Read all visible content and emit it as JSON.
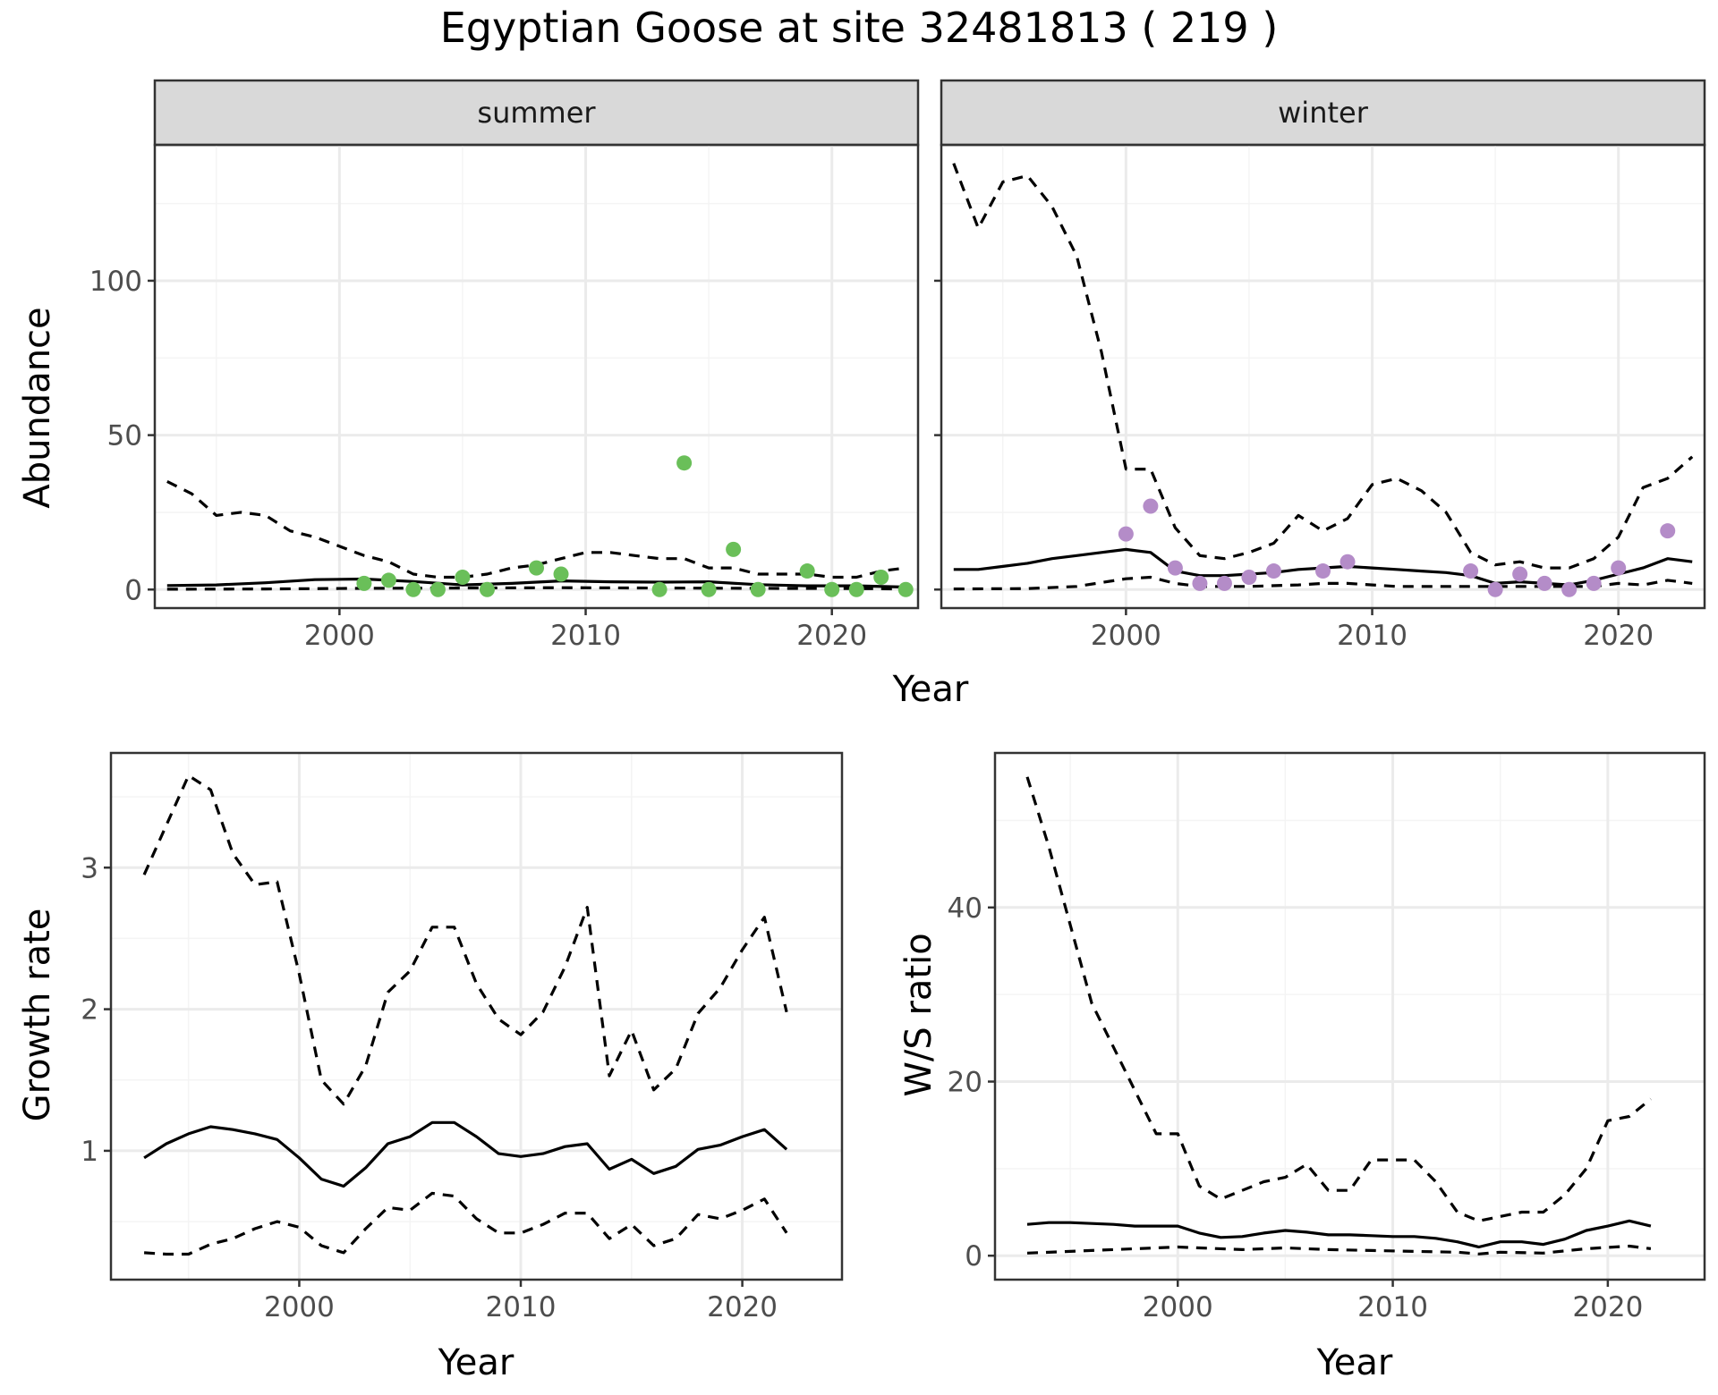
{
  "title": "Egyptian Goose at site 32481813 ( 219 )",
  "colors": {
    "summer_points": "#6abf59",
    "winter_points": "#b48cc8",
    "line": "#000000",
    "strip_bg": "#d9d9d9",
    "grid_major": "#ebebeb",
    "grid_minor": "#f4f4f4"
  },
  "chart_data": [
    {
      "type": "line",
      "panel": "summer",
      "strip_label": "summer",
      "xlabel": "Year",
      "ylabel": "Abundance",
      "xlim": [
        1992.5,
        2023.5
      ],
      "ylim": [
        -6,
        144
      ],
      "xticks": [
        2000,
        2010,
        2020
      ],
      "yticks": [
        0,
        50,
        100
      ],
      "grid": true,
      "series": [
        {
          "style": "solid",
          "x": [
            1993,
            1995,
            1997,
            1999,
            2001,
            2003,
            2005,
            2007,
            2009,
            2011,
            2013,
            2015,
            2017,
            2019,
            2021,
            2023
          ],
          "y": [
            1.3,
            1.5,
            2.2,
            3.2,
            3.4,
            2.6,
            1.5,
            2.0,
            2.8,
            2.5,
            2.4,
            2.5,
            1.6,
            1.2,
            1.2,
            0.8
          ]
        },
        {
          "style": "dashed",
          "x": [
            1993,
            1994,
            1995,
            1996,
            1997,
            1998,
            1999,
            2000,
            2001,
            2002,
            2003,
            2004,
            2005,
            2006,
            2007,
            2008,
            2009,
            2010,
            2011,
            2012,
            2013,
            2014,
            2015,
            2016,
            2017,
            2018,
            2019,
            2020,
            2021,
            2022,
            2023
          ],
          "y": [
            35,
            31,
            24,
            25,
            24,
            19,
            17,
            14,
            11,
            9,
            5,
            4,
            4,
            5,
            7,
            8,
            10,
            12,
            12,
            11,
            10,
            10,
            7,
            7,
            5,
            5,
            5,
            4,
            4,
            6,
            7
          ]
        },
        {
          "style": "dashed",
          "x": [
            1993,
            1997,
            2001,
            2005,
            2009,
            2013,
            2017,
            2021,
            2023
          ],
          "y": [
            0.1,
            0.2,
            0.4,
            0.5,
            0.6,
            0.5,
            0.4,
            0.3,
            0.2
          ]
        }
      ],
      "points": {
        "x": [
          2001,
          2002,
          2003,
          2004,
          2005,
          2006,
          2008,
          2009,
          2013,
          2014,
          2015,
          2016,
          2017,
          2019,
          2020,
          2021,
          2022,
          2023
        ],
        "y": [
          2,
          3,
          0,
          0,
          4,
          0,
          7,
          5,
          0,
          41,
          0,
          13,
          0,
          6,
          0,
          0,
          4,
          0
        ]
      }
    },
    {
      "type": "line",
      "panel": "winter",
      "strip_label": "winter",
      "xlabel": "Year",
      "ylabel": "Abundance",
      "xlim": [
        1992.5,
        2023.5
      ],
      "ylim": [
        -6,
        144
      ],
      "xticks": [
        2000,
        2010,
        2020
      ],
      "yticks": [
        0,
        50,
        100
      ],
      "grid": true,
      "series": [
        {
          "style": "solid",
          "x": [
            1993,
            1994,
            1995,
            1996,
            1997,
            1998,
            1999,
            2000,
            2001,
            2002,
            2003,
            2004,
            2005,
            2006,
            2007,
            2008,
            2009,
            2010,
            2011,
            2012,
            2013,
            2014,
            2015,
            2016,
            2017,
            2018,
            2019,
            2020,
            2021,
            2022,
            2023
          ],
          "y": [
            6.5,
            6.5,
            7.5,
            8.5,
            10,
            11,
            12,
            13,
            12,
            6,
            4.5,
            4.5,
            5,
            5.5,
            6.5,
            7,
            7.5,
            7,
            6.5,
            6,
            5.5,
            4.5,
            2,
            2.5,
            2,
            1.5,
            3,
            5,
            7,
            10,
            9
          ]
        },
        {
          "style": "dashed",
          "x": [
            1993,
            1994,
            1995,
            1996,
            1997,
            1998,
            1999,
            2000,
            2001,
            2002,
            2003,
            2004,
            2005,
            2006,
            2007,
            2008,
            2009,
            2010,
            2011,
            2012,
            2013,
            2014,
            2015,
            2016,
            2017,
            2018,
            2019,
            2020,
            2021,
            2022,
            2023
          ],
          "y": [
            138,
            117,
            132,
            134,
            124,
            108,
            77,
            39,
            39,
            20,
            11,
            10,
            12,
            15,
            24,
            19,
            23,
            34,
            36,
            32,
            25,
            12,
            8,
            9,
            7,
            7,
            10,
            17,
            33,
            36,
            43
          ]
        },
        {
          "style": "dashed",
          "x": [
            1993,
            1996,
            1998,
            2000,
            2001,
            2002,
            2003,
            2005,
            2007,
            2008,
            2009,
            2011,
            2013,
            2015,
            2017,
            2019,
            2020,
            2021,
            2022,
            2023
          ],
          "y": [
            0.2,
            0.3,
            1,
            3.5,
            4,
            2,
            1,
            1,
            1.5,
            2,
            2,
            1,
            1,
            1,
            1,
            1,
            2,
            1.5,
            3,
            2
          ]
        }
      ],
      "points": {
        "x": [
          2000,
          2001,
          2002,
          2003,
          2004,
          2005,
          2006,
          2008,
          2009,
          2014,
          2015,
          2016,
          2017,
          2018,
          2019,
          2020,
          2022
        ],
        "y": [
          18,
          27,
          7,
          2,
          2,
          4,
          6,
          6,
          9,
          6,
          0,
          5,
          2,
          0,
          2,
          7,
          19
        ]
      }
    },
    {
      "type": "line",
      "panel": "growth",
      "xlabel": "Year",
      "ylabel": "Growth rate",
      "xlim": [
        1991.5,
        2024.5
      ],
      "ylim": [
        0.09,
        3.81
      ],
      "xticks": [
        2000,
        2010,
        2020
      ],
      "yticks": [
        1,
        2,
        3
      ],
      "grid": true,
      "series": [
        {
          "style": "solid",
          "x": [
            1993,
            1994,
            1995,
            1996,
            1997,
            1998,
            1999,
            2000,
            2001,
            2002,
            2003,
            2004,
            2005,
            2006,
            2007,
            2008,
            2009,
            2010,
            2011,
            2012,
            2013,
            2014,
            2015,
            2016,
            2017,
            2018,
            2019,
            2020,
            2021,
            2022
          ],
          "y": [
            0.95,
            1.05,
            1.12,
            1.17,
            1.15,
            1.12,
            1.08,
            0.95,
            0.8,
            0.75,
            0.88,
            1.05,
            1.1,
            1.2,
            1.2,
            1.1,
            0.98,
            0.96,
            0.98,
            1.03,
            1.05,
            0.87,
            0.94,
            0.84,
            0.89,
            1.01,
            1.04,
            1.1,
            1.15,
            1.01
          ]
        },
        {
          "style": "dashed",
          "x": [
            1993,
            1994,
            1995,
            1996,
            1997,
            1998,
            1999,
            2000,
            2001,
            2002,
            2003,
            2004,
            2005,
            2006,
            2007,
            2008,
            2009,
            2010,
            2011,
            2012,
            2013,
            2014,
            2015,
            2016,
            2017,
            2018,
            2019,
            2020,
            2021,
            2022
          ],
          "y": [
            2.95,
            3.3,
            3.65,
            3.55,
            3.1,
            2.88,
            2.9,
            2.25,
            1.5,
            1.33,
            1.6,
            2.12,
            2.27,
            2.58,
            2.58,
            2.18,
            1.93,
            1.82,
            1.98,
            2.3,
            2.72,
            1.53,
            1.85,
            1.43,
            1.58,
            1.97,
            2.15,
            2.42,
            2.65,
            1.98
          ]
        },
        {
          "style": "dashed",
          "x": [
            1993,
            1994,
            1995,
            1996,
            1997,
            1998,
            1999,
            2000,
            2001,
            2002,
            2003,
            2004,
            2005,
            2006,
            2007,
            2008,
            2009,
            2010,
            2011,
            2012,
            2013,
            2014,
            2015,
            2016,
            2017,
            2018,
            2019,
            2020,
            2021,
            2022
          ],
          "y": [
            0.28,
            0.27,
            0.27,
            0.34,
            0.38,
            0.45,
            0.5,
            0.46,
            0.33,
            0.28,
            0.45,
            0.6,
            0.58,
            0.7,
            0.68,
            0.52,
            0.42,
            0.42,
            0.48,
            0.56,
            0.56,
            0.38,
            0.48,
            0.33,
            0.38,
            0.55,
            0.52,
            0.58,
            0.66,
            0.42
          ]
        }
      ]
    },
    {
      "type": "line",
      "panel": "ratio",
      "xlabel": "Year",
      "ylabel": "W/S ratio",
      "xlim": [
        1991.5,
        2024.5
      ],
      "ylim": [
        -2.75,
        57.75
      ],
      "xticks": [
        2000,
        2010,
        2020
      ],
      "yticks": [
        0,
        20,
        40
      ],
      "grid": true,
      "series": [
        {
          "style": "solid",
          "x": [
            1993,
            1994,
            1995,
            1996,
            1997,
            1998,
            1999,
            2000,
            2001,
            2002,
            2003,
            2004,
            2005,
            2006,
            2007,
            2008,
            2009,
            2010,
            2011,
            2012,
            2013,
            2014,
            2015,
            2016,
            2017,
            2018,
            2019,
            2020,
            2021,
            2022
          ],
          "y": [
            3.6,
            3.8,
            3.8,
            3.7,
            3.6,
            3.4,
            3.4,
            3.4,
            2.6,
            2.1,
            2.2,
            2.6,
            2.9,
            2.7,
            2.4,
            2.4,
            2.3,
            2.2,
            2.2,
            2.0,
            1.6,
            1.0,
            1.6,
            1.6,
            1.3,
            1.9,
            2.9,
            3.4,
            4.0,
            3.4
          ]
        },
        {
          "style": "dashed",
          "x": [
            1993,
            1994,
            1995,
            1996,
            1997,
            1998,
            1999,
            2000,
            2001,
            2002,
            2003,
            2004,
            2005,
            2006,
            2007,
            2008,
            2009,
            2010,
            2011,
            2012,
            2013,
            2014,
            2015,
            2016,
            2017,
            2018,
            2019,
            2020,
            2021,
            2022
          ],
          "y": [
            55,
            47,
            38,
            29,
            24,
            19,
            14,
            14,
            8,
            6.5,
            7.5,
            8.5,
            9,
            10.5,
            7.5,
            7.5,
            11,
            11,
            11,
            8.5,
            5,
            4,
            4.5,
            5,
            5,
            7,
            10,
            15.5,
            16,
            18
          ]
        },
        {
          "style": "dashed",
          "x": [
            1993,
            1995,
            1997,
            1999,
            2000,
            2001,
            2003,
            2005,
            2007,
            2009,
            2011,
            2013,
            2014,
            2015,
            2017,
            2019,
            2021,
            2022
          ],
          "y": [
            0.3,
            0.5,
            0.7,
            0.9,
            1.0,
            0.9,
            0.7,
            0.9,
            0.7,
            0.6,
            0.5,
            0.4,
            0.2,
            0.4,
            0.3,
            0.8,
            1.1,
            0.8
          ]
        }
      ]
    }
  ]
}
